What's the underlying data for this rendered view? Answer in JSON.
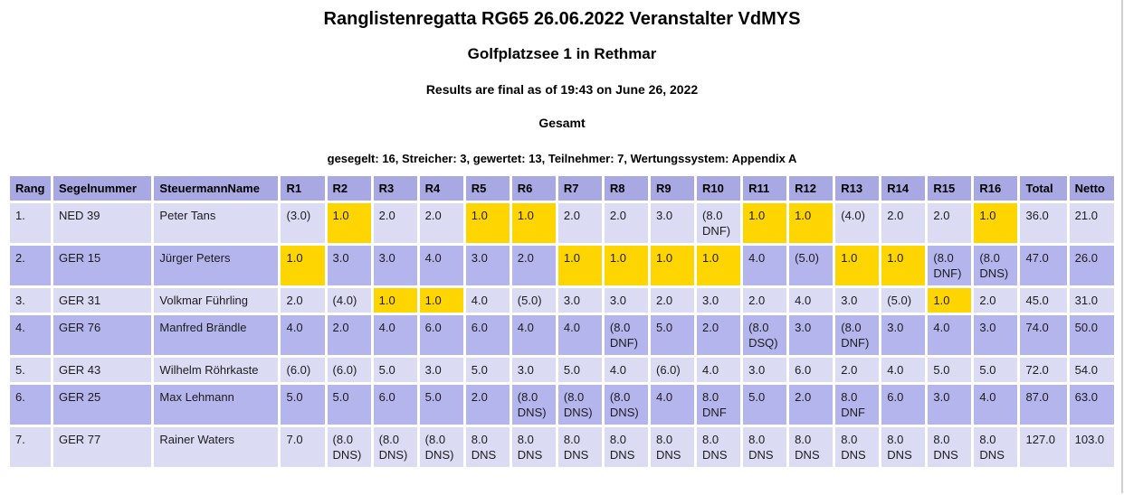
{
  "header": {
    "title": "Ranglistenregatta RG65 26.06.2022 Veranstalter VdMYS",
    "venue": "Golfplatzsee 1 in Rethmar",
    "status": "Results are final as of 19:43 on June 26, 2022",
    "section": "Gesamt",
    "summary": "gesegelt: 16, Streicher: 3, gewertet: 13, Teilnehmer: 7, Wertungssystem: Appendix A"
  },
  "colors": {
    "header_bg": "#a8a8e2",
    "row_odd_bg": "#dbdbf4",
    "row_even_bg": "#b5b5ee",
    "win_bg": "#ffd500",
    "grid": "#ffffff",
    "text": "#1c1c1c"
  },
  "table": {
    "columns": [
      "Rang",
      "Segelnummer",
      "SteuermannName",
      "R1",
      "R2",
      "R3",
      "R4",
      "R5",
      "R6",
      "R7",
      "R8",
      "R9",
      "R10",
      "R11",
      "R12",
      "R13",
      "R14",
      "R15",
      "R16",
      "Total",
      "Netto"
    ],
    "rows": [
      {
        "rang": "1.",
        "segelnummer": "NED 39",
        "steuermann": "Peter Tans",
        "races": [
          "(3.0)",
          "1.0",
          "2.0",
          "2.0",
          "1.0",
          "1.0",
          "2.0",
          "2.0",
          "3.0",
          "(8.0 DNF)",
          "1.0",
          "1.0",
          "(4.0)",
          "2.0",
          "2.0",
          "1.0"
        ],
        "wins": [
          2,
          5,
          6,
          11,
          12,
          16
        ],
        "total": "36.0",
        "netto": "21.0"
      },
      {
        "rang": "2.",
        "segelnummer": "GER 15",
        "steuermann": "Jürger Peters",
        "races": [
          "1.0",
          "3.0",
          "3.0",
          "4.0",
          "3.0",
          "2.0",
          "1.0",
          "1.0",
          "1.0",
          "1.0",
          "4.0",
          "(5.0)",
          "1.0",
          "1.0",
          "(8.0 DNF)",
          "(8.0 DNS)"
        ],
        "wins": [
          1,
          7,
          8,
          9,
          10,
          13,
          14
        ],
        "total": "47.0",
        "netto": "26.0"
      },
      {
        "rang": "3.",
        "segelnummer": "GER 31",
        "steuermann": "Volkmar Führling",
        "races": [
          "2.0",
          "(4.0)",
          "1.0",
          "1.0",
          "4.0",
          "(5.0)",
          "3.0",
          "3.0",
          "2.0",
          "3.0",
          "2.0",
          "4.0",
          "3.0",
          "(5.0)",
          "1.0",
          "2.0"
        ],
        "wins": [
          3,
          4,
          15
        ],
        "total": "45.0",
        "netto": "31.0"
      },
      {
        "rang": "4.",
        "segelnummer": "GER 76",
        "steuermann": "Manfred Brändle",
        "races": [
          "4.0",
          "2.0",
          "4.0",
          "6.0",
          "6.0",
          "4.0",
          "4.0",
          "(8.0 DNF)",
          "5.0",
          "2.0",
          "(8.0 DSQ)",
          "3.0",
          "(8.0 DNF)",
          "3.0",
          "4.0",
          "3.0"
        ],
        "wins": [],
        "total": "74.0",
        "netto": "50.0"
      },
      {
        "rang": "5.",
        "segelnummer": "GER 43",
        "steuermann": "Wilhelm Röhrkaste",
        "races": [
          "(6.0)",
          "(6.0)",
          "5.0",
          "3.0",
          "5.0",
          "3.0",
          "5.0",
          "4.0",
          "(6.0)",
          "4.0",
          "3.0",
          "6.0",
          "2.0",
          "4.0",
          "5.0",
          "5.0"
        ],
        "wins": [],
        "total": "72.0",
        "netto": "54.0"
      },
      {
        "rang": "6.",
        "segelnummer": "GER 25",
        "steuermann": "Max Lehmann",
        "races": [
          "5.0",
          "5.0",
          "6.0",
          "5.0",
          "2.0",
          "(8.0 DNS)",
          "(8.0 DNS)",
          "(8.0 DNS)",
          "4.0",
          "8.0 DNF",
          "5.0",
          "2.0",
          "8.0 DNF",
          "6.0",
          "3.0",
          "4.0"
        ],
        "wins": [],
        "total": "87.0",
        "netto": "63.0"
      },
      {
        "rang": "7.",
        "segelnummer": "GER 77",
        "steuermann": "Rainer Waters",
        "races": [
          "7.0",
          "(8.0 DNS)",
          "(8.0 DNS)",
          "(8.0 DNS)",
          "8.0 DNS",
          "8.0 DNS",
          "8.0 DNS",
          "8.0 DNS",
          "8.0 DNS",
          "8.0 DNS",
          "8.0 DNS",
          "8.0 DNS",
          "8.0 DNS",
          "8.0 DNS",
          "8.0 DNS",
          "8.0 DNS"
        ],
        "wins": [],
        "total": "127.0",
        "netto": "103.0"
      }
    ]
  }
}
